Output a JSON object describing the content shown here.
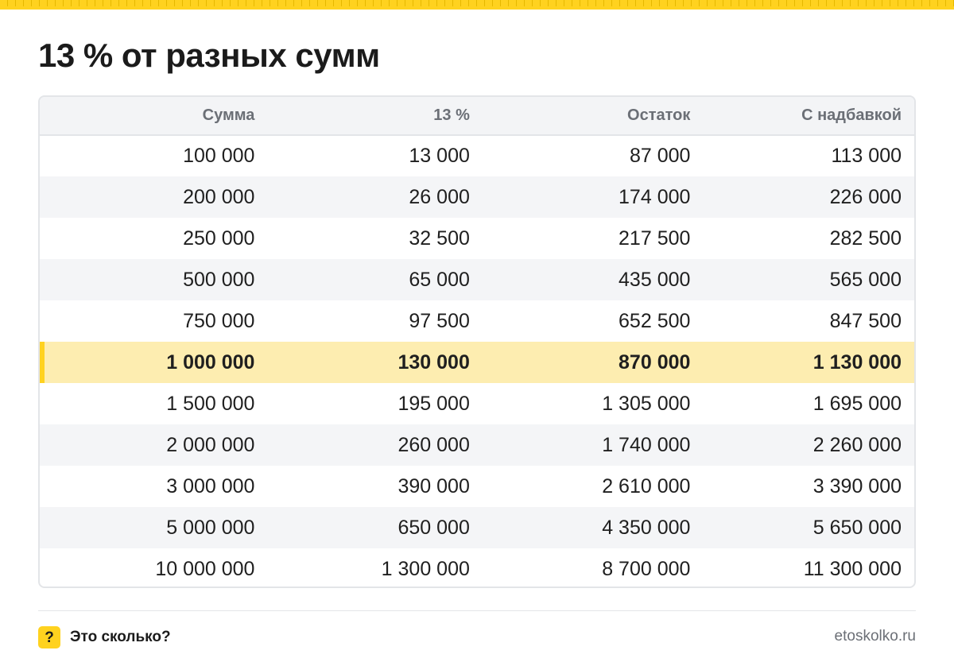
{
  "page": {
    "title": "13 % от разных сумм"
  },
  "table": {
    "columns": [
      "Сумма",
      "13 %",
      "Остаток",
      "С надбавкой"
    ],
    "rows": [
      [
        "100 000",
        "13 000",
        "87 000",
        "113 000"
      ],
      [
        "200 000",
        "26 000",
        "174 000",
        "226 000"
      ],
      [
        "250 000",
        "32 500",
        "217 500",
        "282 500"
      ],
      [
        "500 000",
        "65 000",
        "435 000",
        "565 000"
      ],
      [
        "750 000",
        "97 500",
        "652 500",
        "847 500"
      ],
      [
        "1 000 000",
        "130 000",
        "870 000",
        "1 130 000"
      ],
      [
        "1 500 000",
        "195 000",
        "1 305 000",
        "1 695 000"
      ],
      [
        "2 000 000",
        "260 000",
        "1 740 000",
        "2 260 000"
      ],
      [
        "3 000 000",
        "390 000",
        "2 610 000",
        "3 390 000"
      ],
      [
        "5 000 000",
        "650 000",
        "4 350 000",
        "5 650 000"
      ],
      [
        "10 000 000",
        "1 300 000",
        "8 700 000",
        "11 300 000"
      ]
    ],
    "highlighted_row_index": 5
  },
  "footer": {
    "brand_icon_glyph": "?",
    "brand_name": "Это сколько?",
    "site": "etoskolko.ru"
  },
  "colors": {
    "accent": "#ffd21f",
    "highlight_row": "#fdedb0",
    "header_text": "#6b6f76"
  }
}
